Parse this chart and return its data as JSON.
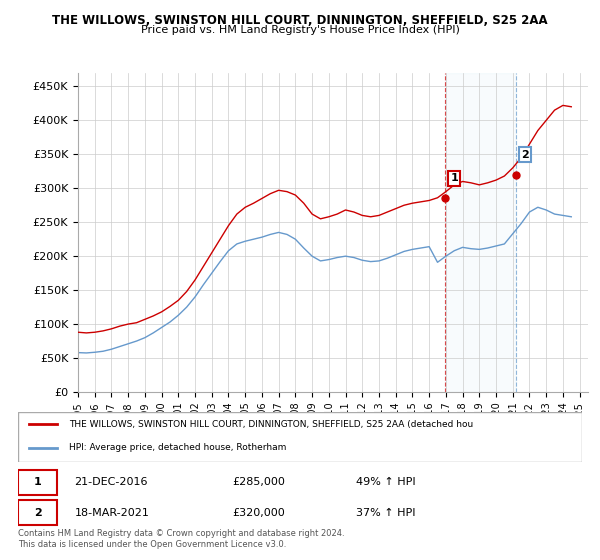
{
  "title1": "THE WILLOWS, SWINSTON HILL COURT, DINNINGTON, SHEFFIELD, S25 2AA",
  "title2": "Price paid vs. HM Land Registry's House Price Index (HPI)",
  "ylabel_ticks": [
    "£0",
    "£50K",
    "£100K",
    "£150K",
    "£200K",
    "£250K",
    "£300K",
    "£350K",
    "£400K",
    "£450K"
  ],
  "ytick_values": [
    0,
    50000,
    100000,
    150000,
    200000,
    250000,
    300000,
    350000,
    400000,
    450000
  ],
  "xlim": [
    1995.0,
    2025.5
  ],
  "ylim": [
    0,
    470000
  ],
  "grid_color": "#cccccc",
  "red_color": "#cc0000",
  "blue_color": "#6699cc",
  "marker1_x": 2016.97,
  "marker1_y": 285000,
  "marker1_label": "1",
  "marker1_date": "21-DEC-2016",
  "marker1_price": "£285,000",
  "marker1_hpi": "49% ↑ HPI",
  "marker2_x": 2021.21,
  "marker2_y": 320000,
  "marker2_label": "2",
  "marker2_date": "18-MAR-2021",
  "marker2_price": "£320,000",
  "marker2_hpi": "37% ↑ HPI",
  "legend_line1": "THE WILLOWS, SWINSTON HILL COURT, DINNINGTON, SHEFFIELD, S25 2AA (detached hou",
  "legend_line2": "HPI: Average price, detached house, Rotherham",
  "footer": "Contains HM Land Registry data © Crown copyright and database right 2024.\nThis data is licensed under the Open Government Licence v3.0.",
  "red_x": [
    1995.0,
    1995.5,
    1996.0,
    1996.5,
    1997.0,
    1997.5,
    1998.0,
    1998.5,
    1999.0,
    1999.5,
    2000.0,
    2000.5,
    2001.0,
    2001.5,
    2002.0,
    2002.5,
    2003.0,
    2003.5,
    2004.0,
    2004.5,
    2005.0,
    2005.5,
    2006.0,
    2006.5,
    2007.0,
    2007.5,
    2008.0,
    2008.5,
    2009.0,
    2009.5,
    2010.0,
    2010.5,
    2011.0,
    2011.5,
    2012.0,
    2012.5,
    2013.0,
    2013.5,
    2014.0,
    2014.5,
    2015.0,
    2015.5,
    2016.0,
    2016.5,
    2017.0,
    2017.5,
    2018.0,
    2018.5,
    2019.0,
    2019.5,
    2020.0,
    2020.5,
    2021.0,
    2021.5,
    2022.0,
    2022.5,
    2023.0,
    2023.5,
    2024.0,
    2024.5
  ],
  "red_y": [
    88000,
    87000,
    88000,
    90000,
    93000,
    97000,
    100000,
    102000,
    107000,
    112000,
    118000,
    126000,
    135000,
    148000,
    165000,
    185000,
    205000,
    225000,
    245000,
    262000,
    272000,
    278000,
    285000,
    292000,
    297000,
    295000,
    290000,
    278000,
    262000,
    255000,
    258000,
    262000,
    268000,
    265000,
    260000,
    258000,
    260000,
    265000,
    270000,
    275000,
    278000,
    280000,
    282000,
    286000,
    295000,
    305000,
    310000,
    308000,
    305000,
    308000,
    312000,
    318000,
    330000,
    345000,
    365000,
    385000,
    400000,
    415000,
    422000,
    420000
  ],
  "blue_x": [
    1995.0,
    1995.5,
    1996.0,
    1996.5,
    1997.0,
    1997.5,
    1998.0,
    1998.5,
    1999.0,
    1999.5,
    2000.0,
    2000.5,
    2001.0,
    2001.5,
    2002.0,
    2002.5,
    2003.0,
    2003.5,
    2004.0,
    2004.5,
    2005.0,
    2005.5,
    2006.0,
    2006.5,
    2007.0,
    2007.5,
    2008.0,
    2008.5,
    2009.0,
    2009.5,
    2010.0,
    2010.5,
    2011.0,
    2011.5,
    2012.0,
    2012.5,
    2013.0,
    2013.5,
    2014.0,
    2014.5,
    2015.0,
    2015.5,
    2016.0,
    2016.5,
    2017.0,
    2017.5,
    2018.0,
    2018.5,
    2019.0,
    2019.5,
    2020.0,
    2020.5,
    2021.0,
    2021.5,
    2022.0,
    2022.5,
    2023.0,
    2023.5,
    2024.0,
    2024.5
  ],
  "blue_y": [
    58000,
    57500,
    58500,
    60000,
    63000,
    67000,
    71000,
    75000,
    80000,
    87000,
    95000,
    103000,
    113000,
    125000,
    140000,
    158000,
    175000,
    192000,
    208000,
    218000,
    222000,
    225000,
    228000,
    232000,
    235000,
    232000,
    225000,
    212000,
    200000,
    193000,
    195000,
    198000,
    200000,
    198000,
    194000,
    192000,
    193000,
    197000,
    202000,
    207000,
    210000,
    212000,
    214000,
    191000,
    200000,
    208000,
    213000,
    211000,
    210000,
    212000,
    215000,
    218000,
    233000,
    248000,
    265000,
    272000,
    268000,
    262000,
    260000,
    258000
  ]
}
